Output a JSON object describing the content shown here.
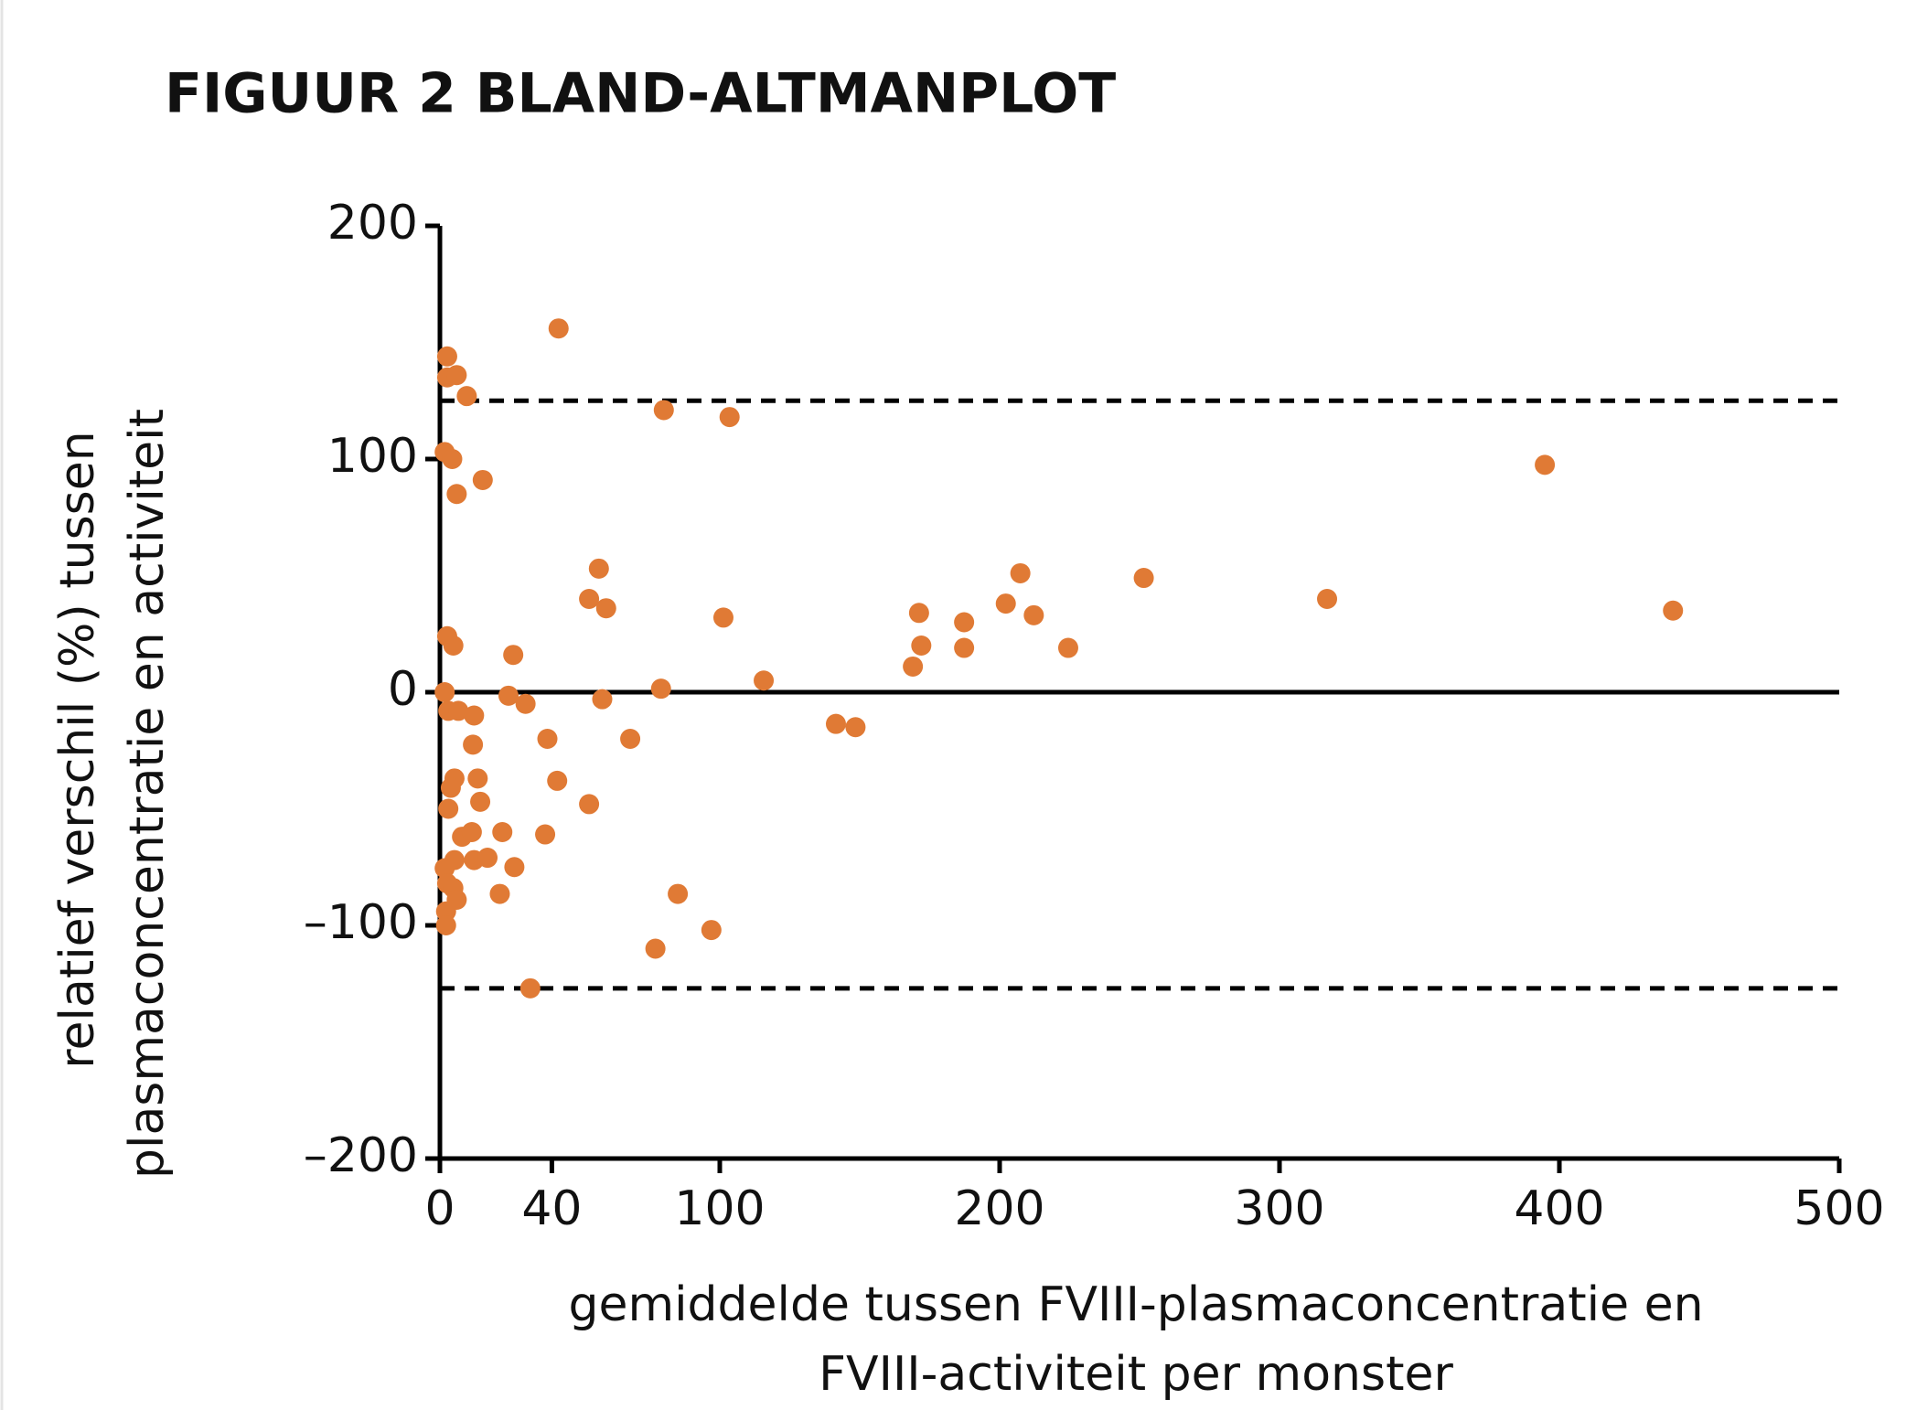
{
  "chart_data": {
    "type": "scatter",
    "title": "FIGUUR 2  BLAND-ALTMANPLOT",
    "xlabel": [
      "gemiddelde tussen FVIII-plasmaconcentratie en",
      "FVIII-activiteit per monster"
    ],
    "ylabel": [
      "relatief verschil (%) tussen",
      "plasmaconcentratie en activiteit"
    ],
    "color": "#e07a35",
    "title_color": "#e07a35",
    "xlim": [
      0,
      500
    ],
    "xticks": [
      0,
      40,
      100,
      200,
      300,
      400,
      500
    ],
    "ylim": [
      -200,
      200
    ],
    "yticks": [
      {
        "value": -200,
        "label": "–200"
      },
      {
        "value": -100,
        "label": "–100"
      },
      0,
      100,
      200
    ],
    "reference_lines": [
      {
        "value": 125,
        "style": "dashed"
      },
      {
        "value": 0,
        "style": "solid"
      },
      {
        "value": -127,
        "style": "dashed"
      }
    ],
    "x": [
      42.4,
      2.6,
      2.6,
      6,
      9.6,
      80,
      103.5,
      1.7,
      4.4,
      6,
      15.3,
      394.8,
      56.8,
      53.3,
      59.4,
      101.3,
      207.4,
      251.5,
      171.2,
      187.3,
      202.2,
      212.2,
      317,
      440.6,
      172,
      187.3,
      224.5,
      169,
      2.6,
      4.8,
      26.2,
      115.7,
      1.7,
      79,
      24.5,
      30.6,
      58,
      3,
      6.6,
      12.2,
      11.8,
      38.4,
      68,
      141.5,
      148.5,
      5.2,
      3.9,
      13.5,
      41.9,
      3,
      14.4,
      53.3,
      7.9,
      11.4,
      22.3,
      37.6,
      5.2,
      12.2,
      17,
      26.6,
      1.7,
      2.6,
      4.8,
      6,
      21.4,
      85,
      2.2,
      2.2,
      97,
      77,
      32.3
    ],
    "values": [
      156,
      144,
      135,
      136,
      127,
      121,
      118,
      103,
      100,
      85,
      91,
      97.5,
      53,
      40,
      36,
      32,
      51,
      49,
      34,
      30,
      38,
      33,
      40,
      35,
      20,
      19,
      19,
      11,
      24,
      20,
      16,
      5,
      0,
      1.5,
      -1.5,
      -5,
      -3,
      -8,
      -8,
      -10,
      -22.5,
      -20,
      -20,
      -13.6,
      -15,
      -37,
      -41,
      -37,
      -38,
      -50,
      -47,
      -48,
      -62,
      -60,
      -60,
      -61,
      -72,
      -72,
      -71,
      -75,
      -75.5,
      -82,
      -84,
      -89,
      -86.5,
      -86.5,
      -94,
      -100,
      -102,
      -110,
      -127
    ]
  }
}
